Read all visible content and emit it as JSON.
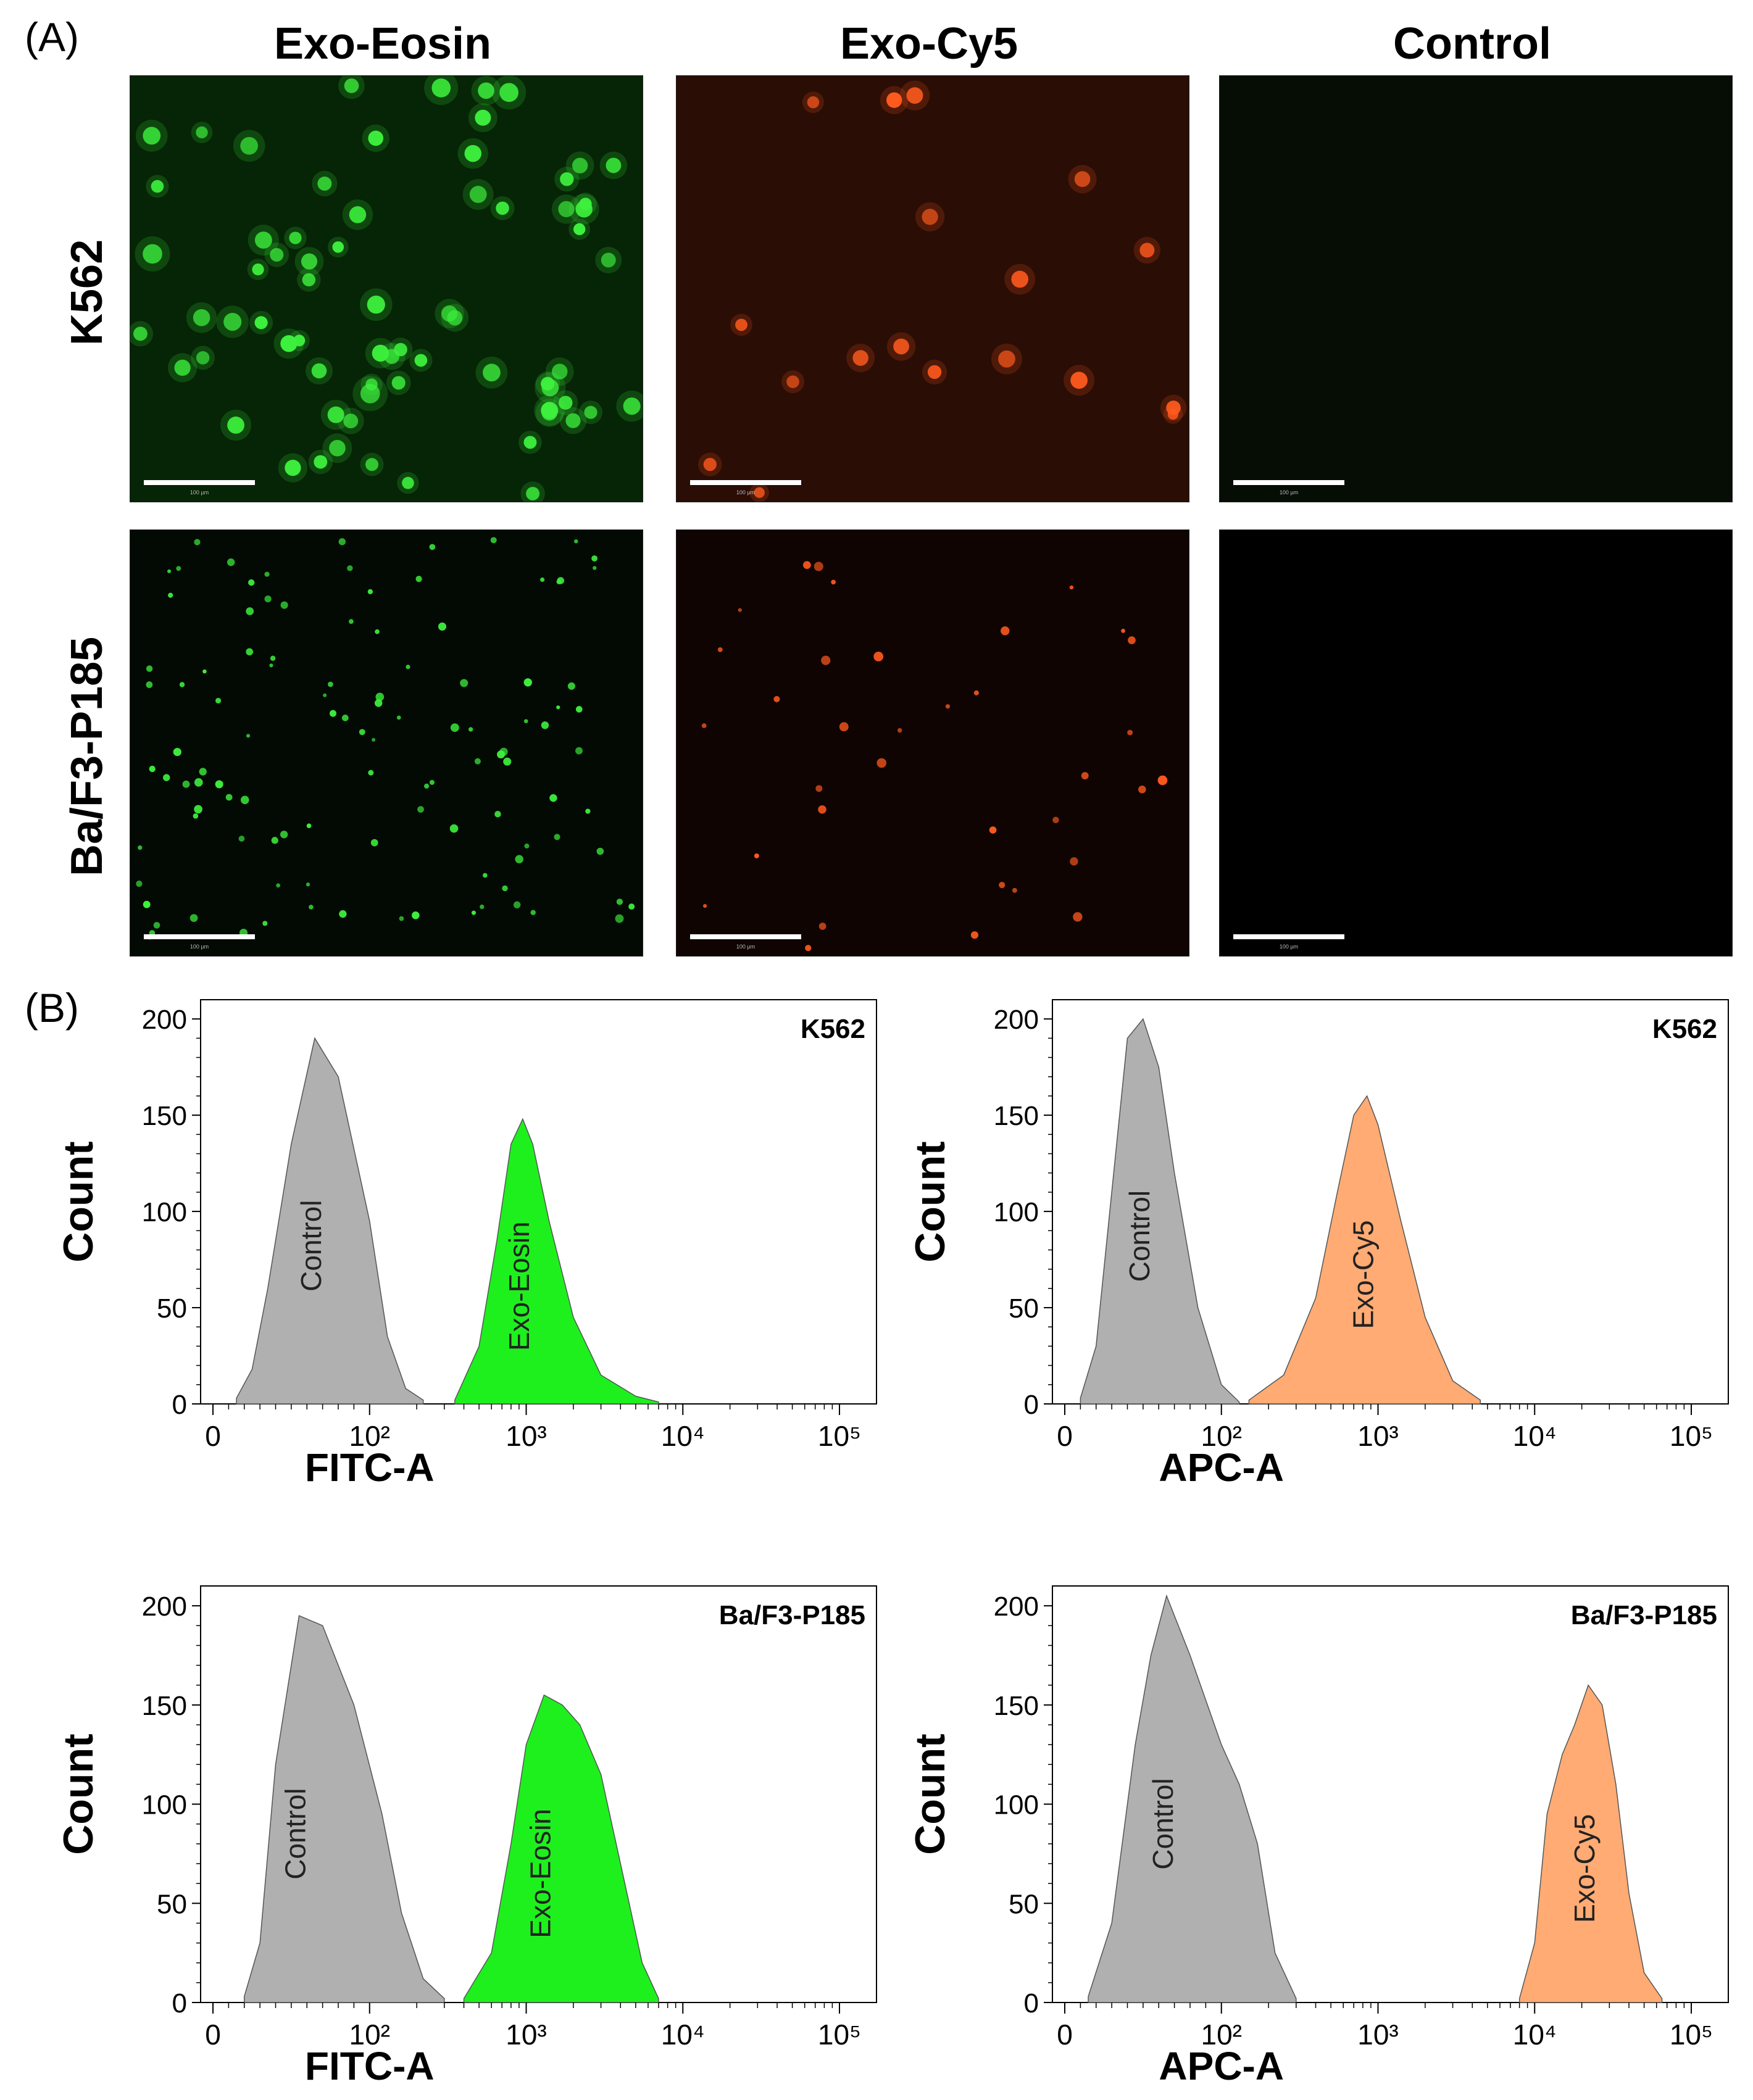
{
  "panel_labels": {
    "a": "(A)",
    "b": "(B)"
  },
  "micrographs": {
    "columns": [
      "Exo-Eosin",
      "Exo-Cy5",
      "Control"
    ],
    "rows": [
      "K562",
      "Ba/F3-P185"
    ],
    "scale_bar_label": "100 µm",
    "colors": {
      "green_cell": "#3df03d",
      "red_cell": "#ff5a1e",
      "bg_green": "#062406",
      "bg_red": "#2a0d05",
      "bg_dark": "#050d05"
    }
  },
  "chart_data": [
    {
      "type": "area",
      "cell_line": "K562",
      "xlabel": "FITC-A",
      "ylabel": "Count",
      "ylim": [
        0,
        210
      ],
      "yticks": [
        0,
        50,
        100,
        150,
        200
      ],
      "xticks": [
        "0",
        "10²",
        "10³",
        "10⁴",
        "10⁵"
      ],
      "x_scale": "biexponential",
      "series": [
        {
          "name": "Control",
          "color": "#b0b0b0",
          "x": [
            15,
            25,
            35,
            50,
            65,
            80,
            100,
            130,
            170,
            220
          ],
          "y": [
            3,
            18,
            60,
            135,
            190,
            170,
            95,
            35,
            8,
            2
          ]
        },
        {
          "name": "Exo-Eosin",
          "color": "#1ef01e",
          "x": [
            350,
            500,
            650,
            800,
            950,
            1100,
            1400,
            2000,
            3000,
            5000,
            7000
          ],
          "y": [
            2,
            30,
            85,
            135,
            148,
            135,
            95,
            45,
            15,
            4,
            1
          ]
        }
      ]
    },
    {
      "type": "area",
      "cell_line": "K562",
      "xlabel": "APC-A",
      "ylabel": "Count",
      "ylim": [
        0,
        210
      ],
      "yticks": [
        0,
        50,
        100,
        150,
        200
      ],
      "xticks": [
        "0",
        "10²",
        "10³",
        "10⁴",
        "10⁵"
      ],
      "x_scale": "biexponential",
      "series": [
        {
          "name": "Control",
          "color": "#b0b0b0",
          "x": [
            10,
            20,
            30,
            40,
            50,
            60,
            70,
            85,
            100,
            130
          ],
          "y": [
            3,
            30,
            110,
            190,
            200,
            175,
            120,
            50,
            10,
            1
          ]
        },
        {
          "name": "Exo-Cy5",
          "color": "#ffab73",
          "x": [
            150,
            250,
            400,
            550,
            700,
            850,
            1000,
            1400,
            2000,
            3000,
            4500
          ],
          "y": [
            2,
            15,
            55,
            110,
            150,
            160,
            145,
            95,
            45,
            12,
            2
          ]
        }
      ]
    },
    {
      "type": "area",
      "cell_line": "Ba/F3-P185",
      "xlabel": "FITC-A",
      "ylabel": "Count",
      "ylim": [
        0,
        210
      ],
      "yticks": [
        0,
        50,
        100,
        150,
        200
      ],
      "xticks": [
        "0",
        "10²",
        "10³",
        "10⁴",
        "10⁵"
      ],
      "x_scale": "biexponential",
      "series": [
        {
          "name": "Control",
          "color": "#b0b0b0",
          "x": [
            20,
            30,
            40,
            55,
            70,
            90,
            120,
            160,
            220,
            300
          ],
          "y": [
            3,
            30,
            120,
            195,
            190,
            150,
            95,
            45,
            12,
            2
          ]
        },
        {
          "name": "Exo-Eosin",
          "color": "#1ef01e",
          "x": [
            400,
            600,
            800,
            1000,
            1300,
            1700,
            2200,
            3000,
            4000,
            5500,
            7000
          ],
          "y": [
            2,
            25,
            80,
            130,
            155,
            150,
            140,
            115,
            70,
            20,
            2
          ]
        }
      ]
    },
    {
      "type": "area",
      "cell_line": "Ba/F3-P185",
      "xlabel": "APC-A",
      "ylabel": "Count",
      "ylim": [
        0,
        210
      ],
      "yticks": [
        0,
        50,
        100,
        150,
        200
      ],
      "xticks": [
        "0",
        "10²",
        "10³",
        "10⁴",
        "10⁵"
      ],
      "x_scale": "biexponential",
      "series": [
        {
          "name": "Control",
          "color": "#b0b0b0",
          "x": [
            15,
            30,
            45,
            55,
            65,
            80,
            100,
            130,
            170,
            220,
            300
          ],
          "y": [
            3,
            40,
            130,
            175,
            205,
            175,
            130,
            110,
            80,
            25,
            2
          ]
        },
        {
          "name": "Exo-Cy5",
          "color": "#ffab73",
          "x": [
            8000,
            10000,
            12000,
            15000,
            18000,
            22000,
            27000,
            33000,
            40000,
            50000,
            65000
          ],
          "y": [
            2,
            30,
            95,
            125,
            140,
            160,
            150,
            110,
            55,
            15,
            2
          ]
        }
      ]
    }
  ]
}
